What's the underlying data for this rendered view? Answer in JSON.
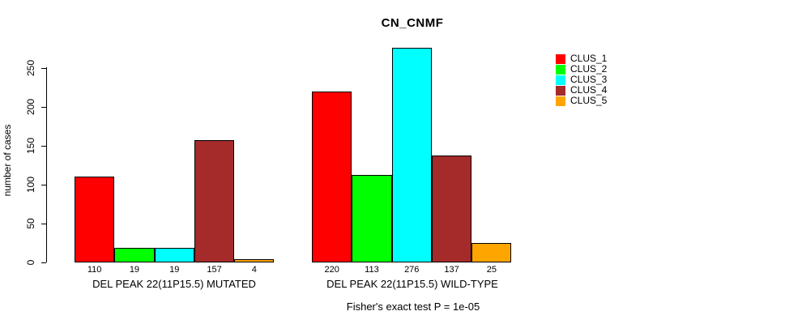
{
  "chart_data": {
    "type": "bar",
    "title": "CN_CNMF",
    "xlabel": "",
    "ylabel": "number of cases",
    "ylim": [
      0,
      250
    ],
    "yticks": [
      0,
      50,
      100,
      150,
      200,
      250
    ],
    "grid": false,
    "bar_borders": true,
    "value_labels_shown": true,
    "legend_position": "right-outside",
    "categories": [
      "DEL PEAK 22(11P15.5) MUTATED",
      "DEL PEAK 22(11P15.5) WILD-TYPE"
    ],
    "series": [
      {
        "name": "CLUS_1",
        "color": "#FF0000",
        "values": [
          110,
          220
        ]
      },
      {
        "name": "CLUS_2",
        "color": "#00FF00",
        "values": [
          19,
          113
        ]
      },
      {
        "name": "CLUS_3",
        "color": "#00FFFF",
        "values": [
          19,
          276
        ]
      },
      {
        "name": "CLUS_4",
        "color": "#A52A2A",
        "values": [
          157,
          137
        ]
      },
      {
        "name": "CLUS_5",
        "color": "#FFA500",
        "values": [
          4,
          25
        ]
      }
    ],
    "annotation": "Fisher's exact test P = 1e-05"
  }
}
